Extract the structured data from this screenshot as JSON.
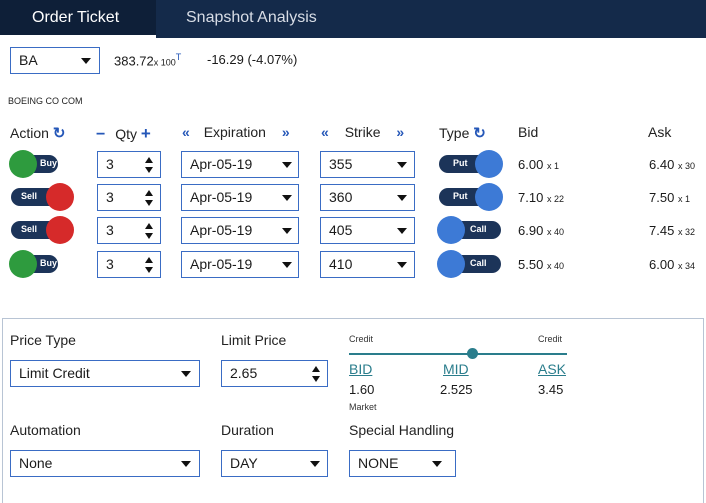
{
  "tabs": [
    {
      "label": "Order Ticket",
      "active": true
    },
    {
      "label": "Snapshot Analysis",
      "active": false
    }
  ],
  "symbol": {
    "value": "BA",
    "price": "383.72",
    "price_size": "x 100",
    "price_flag": "T",
    "change": "-16.29 (-4.07%)",
    "company": "BOEING CO COM"
  },
  "columns": {
    "action": "Action",
    "qty": "Qty",
    "expiration": "Expiration",
    "strike": "Strike",
    "type": "Type",
    "bid": "Bid",
    "ask": "Ask"
  },
  "header_icons": {
    "refresh": "refresh-icon",
    "minus": "minus-icon",
    "plus": "plus-icon",
    "prev": "double-chevron-left-icon",
    "next": "double-chevron-right-icon"
  },
  "legs": [
    {
      "action": "Buy",
      "qty": "3",
      "expiration": "Apr-05-19",
      "strike": "355",
      "type": "Put",
      "bid": "6.00",
      "bid_size": "x 1",
      "ask": "6.40",
      "ask_size": "x 30"
    },
    {
      "action": "Sell",
      "qty": "3",
      "expiration": "Apr-05-19",
      "strike": "360",
      "type": "Put",
      "bid": "7.10",
      "bid_size": "x 22",
      "ask": "7.50",
      "ask_size": "x 1"
    },
    {
      "action": "Sell",
      "qty": "3",
      "expiration": "Apr-05-19",
      "strike": "405",
      "type": "Call",
      "bid": "6.90",
      "bid_size": "x 40",
      "ask": "7.45",
      "ask_size": "x 32"
    },
    {
      "action": "Buy",
      "qty": "3",
      "expiration": "Apr-05-19",
      "strike": "410",
      "type": "Call",
      "bid": "5.50",
      "bid_size": "x 40",
      "ask": "6.00",
      "ask_size": "x 34"
    }
  ],
  "colors": {
    "buy": "#2e9b3e",
    "sell": "#d62a2a",
    "type_knob": "#3d7ad6",
    "toggle_bg": "#1c3459",
    "accent": "#2a7d8c"
  },
  "order": {
    "price_type_label": "Price Type",
    "price_type": "Limit Credit",
    "limit_price_label": "Limit Price",
    "limit_price": "2.65",
    "slider": {
      "left_label": "Credit",
      "right_label": "Credit",
      "position": 0.56,
      "bid_label": "BID",
      "bid_value": "1.60",
      "bid_note": "Market",
      "mid_label": "MID",
      "mid_value": "2.525",
      "ask_label": "ASK",
      "ask_value": "3.45"
    },
    "automation_label": "Automation",
    "automation": "None",
    "duration_label": "Duration",
    "duration": "DAY",
    "special_label": "Special Handling",
    "special": "NONE"
  }
}
